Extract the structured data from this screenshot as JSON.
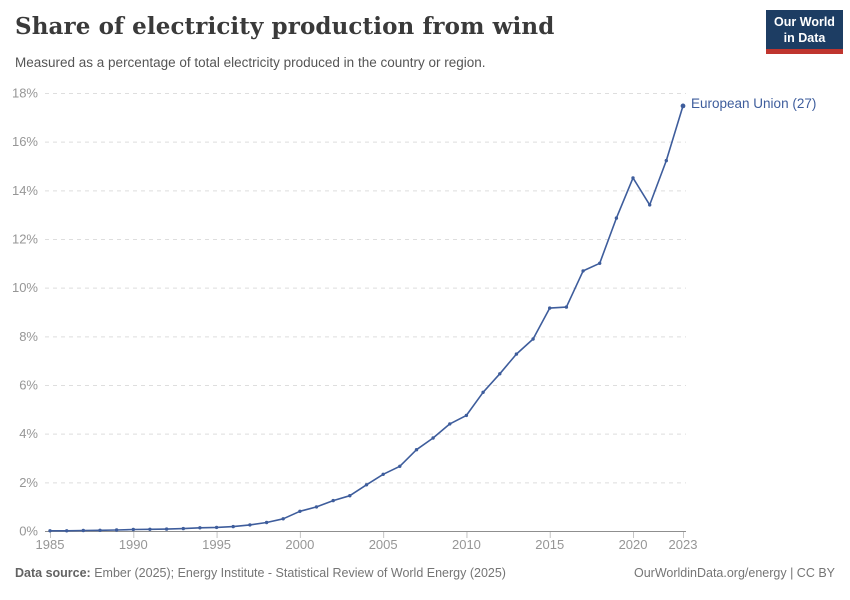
{
  "header": {
    "title": "Share of electricity production from wind",
    "subtitle": "Measured as a percentage of total electricity produced in the country or region."
  },
  "logo": {
    "line1": "Our World",
    "line2": "in Data",
    "bg_color": "#1d3d63",
    "bar_color": "#bf352e",
    "text_color": "#ffffff"
  },
  "chart_data": {
    "type": "line",
    "title": "Share of electricity production from wind",
    "xlabel": "",
    "ylabel": "",
    "ylim": [
      0,
      18
    ],
    "yticks": [
      0,
      2,
      4,
      6,
      8,
      10,
      12,
      14,
      16,
      18
    ],
    "ytick_suffix": "%",
    "xticks": [
      1985,
      1990,
      1995,
      2000,
      2005,
      2010,
      2015,
      2020,
      2023
    ],
    "grid": "horizontal-dashed",
    "legend_position": "end-of-line-label",
    "colors": {
      "grid": "#dedede",
      "axis": "#8f8f8f",
      "tick_mark": "#c4c4c4",
      "tick_label": "#969696"
    },
    "series": [
      {
        "name": "European Union (27)",
        "color": "#3e5d9c",
        "x": [
          1985,
          1986,
          1987,
          1988,
          1989,
          1990,
          1991,
          1992,
          1993,
          1994,
          1995,
          1996,
          1997,
          1998,
          1999,
          2000,
          2001,
          2002,
          2003,
          2004,
          2005,
          2006,
          2007,
          2008,
          2009,
          2010,
          2011,
          2012,
          2013,
          2014,
          2015,
          2016,
          2017,
          2018,
          2019,
          2020,
          2021,
          2022,
          2023
        ],
        "values": [
          0.01,
          0.01,
          0.02,
          0.03,
          0.04,
          0.06,
          0.07,
          0.08,
          0.1,
          0.13,
          0.15,
          0.18,
          0.25,
          0.35,
          0.5,
          0.81,
          0.99,
          1.25,
          1.45,
          1.9,
          2.33,
          2.66,
          3.34,
          3.82,
          4.4,
          4.75,
          5.7,
          6.46,
          7.27,
          7.89,
          9.16,
          9.2,
          10.69,
          11,
          12.86,
          14.51,
          13.4,
          15.22,
          17.47
        ]
      }
    ]
  },
  "footer": {
    "source_label": "Data source:",
    "source_text": "Ember (2025); Energy Institute - Statistical Review of World Energy (2025)",
    "right_text": "OurWorldinData.org/energy | CC BY"
  }
}
